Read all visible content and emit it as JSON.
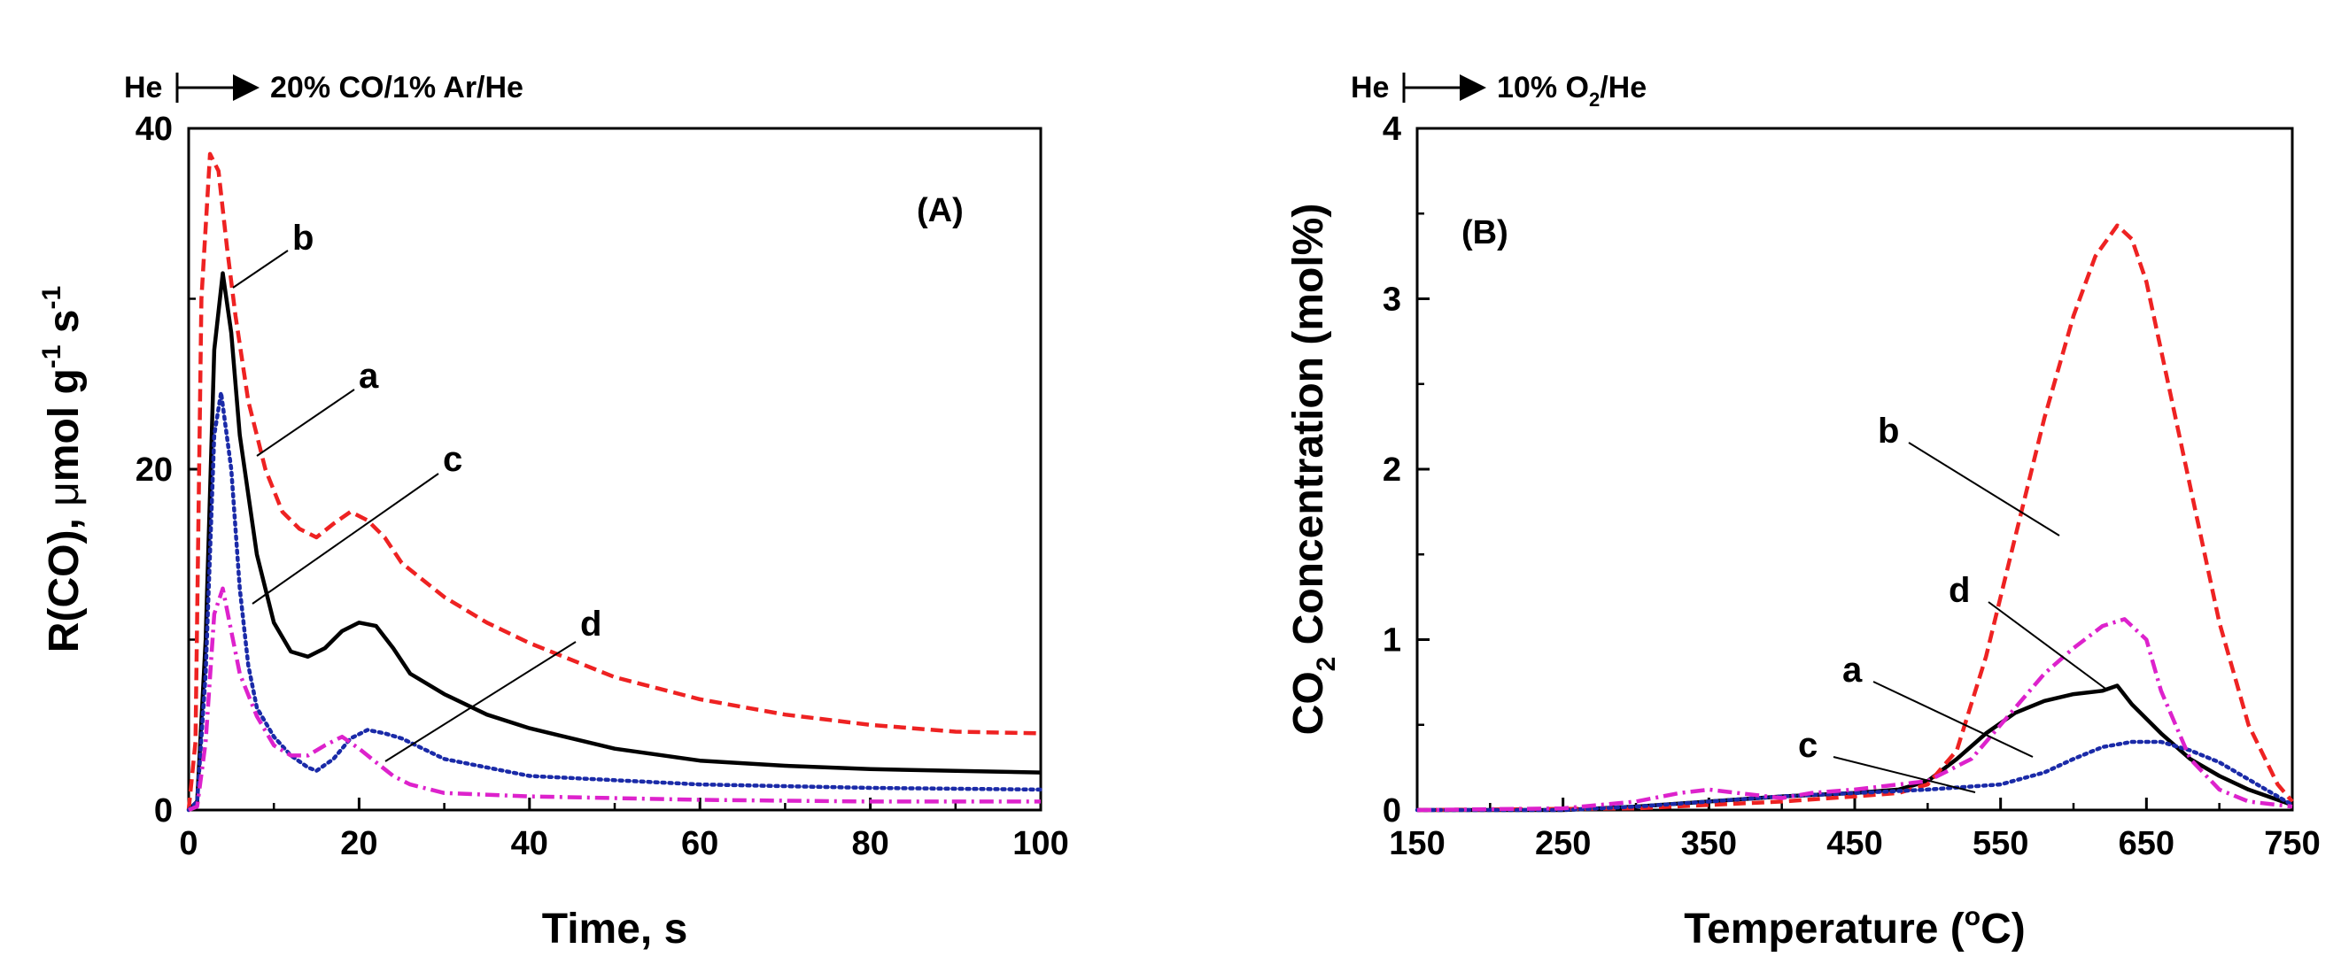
{
  "chart_data": [
    {
      "type": "line",
      "panel_label": "(A)",
      "gas_switch": {
        "from": "He",
        "to": "20% CO/1% Ar/He"
      },
      "xlabel": "Time, s",
      "ylabel": {
        "main": "R(CO), ",
        "mu": "μ",
        "unit1": "mol g",
        "exp1": "-1",
        "unit2": " s",
        "exp2": "-1"
      },
      "xlim": [
        0,
        100
      ],
      "ylim": [
        0,
        40
      ],
      "xticks": [
        "0",
        "20",
        "40",
        "60",
        "80",
        "100"
      ],
      "yticks": [
        "0",
        "20",
        "40"
      ],
      "series": [
        {
          "name": "a",
          "color": "#000000",
          "style": "solid",
          "x": [
            0,
            1,
            2,
            3,
            4,
            5,
            6,
            8,
            10,
            12,
            14,
            16,
            18,
            20,
            22,
            24,
            26,
            30,
            35,
            40,
            50,
            60,
            70,
            80,
            90,
            100
          ],
          "y": [
            0,
            0.5,
            10,
            27,
            31.5,
            28,
            22,
            15,
            11,
            9.3,
            9,
            9.5,
            10.5,
            11,
            10.8,
            9.5,
            8,
            6.8,
            5.6,
            4.8,
            3.6,
            2.9,
            2.6,
            2.4,
            2.3,
            2.2
          ]
        },
        {
          "name": "b",
          "color": "#ee2222",
          "style": "dashed",
          "x": [
            0,
            0.8,
            1.5,
            2.5,
            3.5,
            4.5,
            5.5,
            7,
            9,
            11,
            13,
            15,
            17,
            19,
            21,
            23,
            25,
            30,
            35,
            40,
            50,
            60,
            70,
            80,
            90,
            100
          ],
          "y": [
            0,
            4,
            30,
            38.5,
            37.5,
            33,
            29,
            24,
            20,
            17.5,
            16.5,
            16,
            16.8,
            17.5,
            17,
            16,
            14.5,
            12.5,
            11,
            9.8,
            7.8,
            6.5,
            5.6,
            5,
            4.6,
            4.5
          ]
        },
        {
          "name": "c",
          "color": "#1a2aa8",
          "style": "dotted",
          "x": [
            0,
            1,
            2,
            3,
            3.8,
            5,
            6,
            7,
            8,
            10,
            12,
            14,
            15,
            17,
            19,
            21,
            23,
            25,
            30,
            40,
            60,
            80,
            100
          ],
          "y": [
            0,
            0.5,
            8,
            22,
            24.5,
            20,
            13,
            8.5,
            6,
            4.3,
            3.2,
            2.5,
            2.3,
            3,
            4.2,
            4.7,
            4.5,
            4.2,
            3,
            2,
            1.5,
            1.3,
            1.2
          ]
        },
        {
          "name": "d",
          "color": "#dd22cc",
          "style": "dashdot",
          "x": [
            0,
            1,
            2,
            3,
            4,
            5,
            6,
            8,
            10,
            12,
            14,
            16,
            18,
            20,
            22,
            24,
            26,
            30,
            40,
            60,
            80,
            100
          ],
          "y": [
            0,
            0.2,
            4,
            11.5,
            13,
            10.5,
            8,
            5.5,
            3.8,
            3.2,
            3.2,
            3.8,
            4.3,
            3.6,
            2.8,
            2,
            1.5,
            1,
            0.8,
            0.6,
            0.5,
            0.5
          ]
        }
      ],
      "annotations": [
        "a",
        "b",
        "c",
        "d"
      ]
    },
    {
      "type": "line",
      "panel_label": "(B)",
      "gas_switch": {
        "from": "He",
        "to_pre": "10% O",
        "to_sub": "2",
        "to_post": "/He"
      },
      "xlabel": {
        "pre": "Temperature (",
        "sup": "o",
        "post": "C)"
      },
      "ylabel": {
        "pre": "CO",
        "sub": "2",
        "post": " Concentration (mol%)"
      },
      "xlim": [
        150,
        750
      ],
      "ylim": [
        0,
        4
      ],
      "xticks": [
        "150",
        "250",
        "350",
        "450",
        "550",
        "650",
        "750"
      ],
      "yticks": [
        "0",
        "1",
        "2",
        "3",
        "4"
      ],
      "series": [
        {
          "name": "a",
          "color": "#000000",
          "style": "solid",
          "x": [
            150,
            250,
            300,
            350,
            400,
            450,
            480,
            500,
            520,
            540,
            560,
            580,
            600,
            620,
            630,
            640,
            660,
            680,
            700,
            720,
            750
          ],
          "y": [
            0,
            0,
            0.02,
            0.05,
            0.08,
            0.1,
            0.12,
            0.17,
            0.3,
            0.45,
            0.57,
            0.64,
            0.68,
            0.7,
            0.73,
            0.62,
            0.45,
            0.3,
            0.2,
            0.12,
            0.03
          ]
        },
        {
          "name": "b",
          "color": "#ee2222",
          "style": "dashed",
          "x": [
            150,
            300,
            400,
            450,
            480,
            500,
            520,
            540,
            560,
            580,
            600,
            615,
            630,
            640,
            650,
            660,
            680,
            700,
            720,
            740,
            750
          ],
          "y": [
            0,
            0.01,
            0.05,
            0.08,
            0.1,
            0.15,
            0.35,
            0.9,
            1.6,
            2.3,
            2.9,
            3.25,
            3.43,
            3.35,
            3.1,
            2.7,
            1.9,
            1.1,
            0.5,
            0.15,
            0.05
          ]
        },
        {
          "name": "c",
          "color": "#1a2aa8",
          "style": "dotted",
          "x": [
            150,
            250,
            300,
            350,
            400,
            450,
            500,
            550,
            580,
            600,
            620,
            640,
            660,
            680,
            700,
            720,
            740,
            750
          ],
          "y": [
            0,
            0,
            0.02,
            0.05,
            0.08,
            0.1,
            0.12,
            0.15,
            0.22,
            0.3,
            0.37,
            0.4,
            0.4,
            0.35,
            0.28,
            0.18,
            0.08,
            0.03
          ]
        },
        {
          "name": "d",
          "color": "#dd22cc",
          "style": "dashdot",
          "x": [
            150,
            250,
            300,
            330,
            350,
            370,
            400,
            420,
            450,
            500,
            530,
            550,
            580,
            600,
            620,
            635,
            650,
            660,
            680,
            700,
            720,
            750
          ],
          "y": [
            0,
            0.01,
            0.05,
            0.1,
            0.12,
            0.1,
            0.07,
            0.1,
            0.12,
            0.17,
            0.3,
            0.5,
            0.8,
            0.95,
            1.08,
            1.12,
            1.0,
            0.7,
            0.3,
            0.12,
            0.05,
            0.02
          ]
        }
      ],
      "annotations": [
        "a",
        "b",
        "c",
        "d"
      ]
    }
  ]
}
